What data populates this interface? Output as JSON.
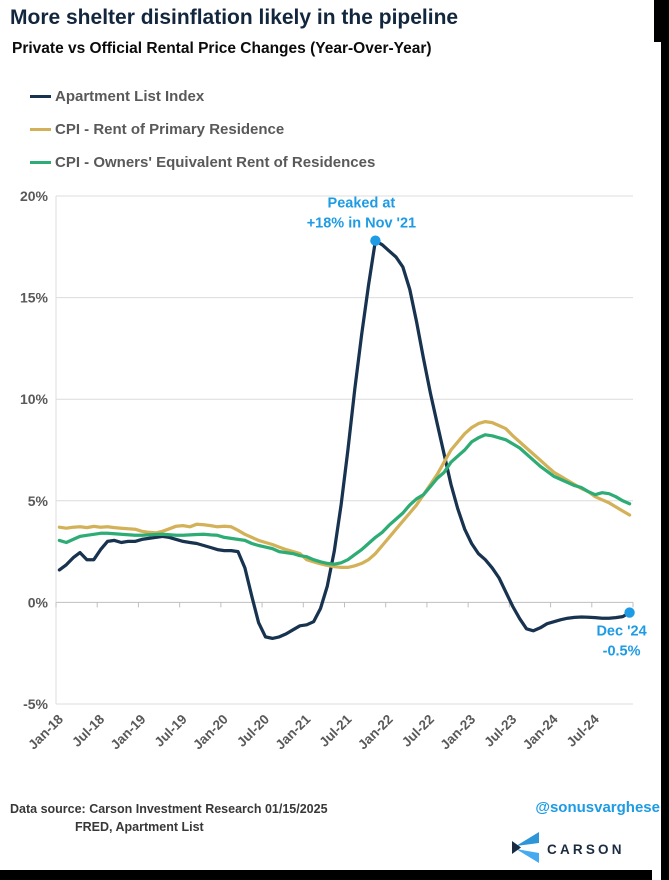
{
  "page": {
    "title": "More shelter disinflation likely in the pipeline",
    "subtitle": "Private vs Official Rental Price Changes (Year-Over-Year)"
  },
  "legend": {
    "items": [
      {
        "label": "Apartment List Index",
        "color": "#17334f"
      },
      {
        "label": "CPI - Rent of Primary Residence",
        "color": "#d3b158"
      },
      {
        "label": "CPI - Owners' Equivalent Rent of Residences",
        "color": "#2eac75"
      }
    ]
  },
  "chart_data": {
    "type": "line",
    "frequency": "monthly",
    "x_start": "Jan-2018",
    "x_end": "Dec-2024",
    "x_tick_labels": [
      "Jan-18",
      "Jul-18",
      "Jan-19",
      "Jul-19",
      "Jan-20",
      "Jul-20",
      "Jan-21",
      "Jul-21",
      "Jan-22",
      "Jul-22",
      "Jan-23",
      "Jul-23",
      "Jan-24",
      "Jul-24"
    ],
    "y_ticks": [
      20,
      15,
      10,
      5,
      0,
      -5
    ],
    "y_tick_labels": [
      "20%",
      "15%",
      "10%",
      "5%",
      "0%",
      "-5%"
    ],
    "ylim": [
      -5,
      20
    ],
    "grid": true,
    "legend_position": "top-left",
    "series": [
      {
        "name": "Apartment List Index",
        "color": "#17334f",
        "values": [
          1.6,
          1.85,
          2.2,
          2.45,
          2.1,
          2.1,
          2.6,
          3.0,
          3.05,
          2.95,
          3.0,
          3.0,
          3.1,
          3.15,
          3.2,
          3.25,
          3.2,
          3.1,
          3.0,
          2.95,
          2.9,
          2.8,
          2.7,
          2.6,
          2.55,
          2.55,
          2.5,
          1.7,
          0.3,
          -1.0,
          -1.7,
          -1.77,
          -1.7,
          -1.55,
          -1.35,
          -1.15,
          -1.1,
          -0.95,
          -0.3,
          0.8,
          2.5,
          4.8,
          7.5,
          10.5,
          13.2,
          15.6,
          17.8,
          17.6,
          17.3,
          17.0,
          16.5,
          15.4,
          13.8,
          12.0,
          10.3,
          8.8,
          7.3,
          5.8,
          4.6,
          3.6,
          2.9,
          2.4,
          2.1,
          1.7,
          1.2,
          0.5,
          -0.2,
          -0.8,
          -1.3,
          -1.4,
          -1.25,
          -1.05,
          -0.95,
          -0.85,
          -0.78,
          -0.74,
          -0.72,
          -0.73,
          -0.75,
          -0.78,
          -0.78,
          -0.75,
          -0.7,
          -0.5
        ]
      },
      {
        "name": "CPI - Rent of Primary Residence",
        "color": "#d3b158",
        "values": [
          3.7,
          3.65,
          3.7,
          3.72,
          3.68,
          3.74,
          3.7,
          3.72,
          3.68,
          3.65,
          3.62,
          3.6,
          3.5,
          3.45,
          3.42,
          3.5,
          3.62,
          3.75,
          3.78,
          3.72,
          3.85,
          3.82,
          3.78,
          3.72,
          3.75,
          3.72,
          3.55,
          3.35,
          3.2,
          3.05,
          2.95,
          2.85,
          2.72,
          2.6,
          2.5,
          2.4,
          2.1,
          2.0,
          1.9,
          1.82,
          1.76,
          1.72,
          1.72,
          1.8,
          1.92,
          2.1,
          2.4,
          2.8,
          3.2,
          3.6,
          4.0,
          4.4,
          4.8,
          5.3,
          5.8,
          6.3,
          6.9,
          7.5,
          7.9,
          8.3,
          8.6,
          8.8,
          8.9,
          8.85,
          8.7,
          8.55,
          8.2,
          7.9,
          7.6,
          7.3,
          7.0,
          6.7,
          6.4,
          6.2,
          6.0,
          5.8,
          5.6,
          5.45,
          5.2,
          5.05,
          4.9,
          4.7,
          4.5,
          4.3
        ]
      },
      {
        "name": "CPI - Owners' Equivalent Rent of Residences",
        "color": "#2eac75",
        "values": [
          3.05,
          2.95,
          3.1,
          3.25,
          3.3,
          3.35,
          3.4,
          3.4,
          3.38,
          3.35,
          3.33,
          3.3,
          3.3,
          3.32,
          3.34,
          3.35,
          3.33,
          3.3,
          3.3,
          3.32,
          3.34,
          3.35,
          3.32,
          3.3,
          3.2,
          3.15,
          3.1,
          3.05,
          2.9,
          2.8,
          2.72,
          2.65,
          2.5,
          2.45,
          2.4,
          2.3,
          2.25,
          2.1,
          2.0,
          1.92,
          1.88,
          1.95,
          2.1,
          2.35,
          2.6,
          2.9,
          3.2,
          3.45,
          3.8,
          4.1,
          4.4,
          4.8,
          5.1,
          5.3,
          5.7,
          6.1,
          6.4,
          6.9,
          7.2,
          7.5,
          7.9,
          8.1,
          8.25,
          8.2,
          8.1,
          8.0,
          7.8,
          7.6,
          7.3,
          7.0,
          6.7,
          6.45,
          6.2,
          6.05,
          5.9,
          5.75,
          5.65,
          5.45,
          5.3,
          5.4,
          5.35,
          5.2,
          5.0,
          4.85
        ]
      }
    ],
    "annotations": [
      {
        "attach": "peak",
        "lines": [
          "Peaked at",
          "+18% in Nov '21"
        ],
        "color": "#1d9be4"
      },
      {
        "attach": "last",
        "lines": [
          "Dec '24",
          "-0.5%"
        ],
        "color": "#1d9be4"
      }
    ],
    "markers": [
      {
        "series": 0,
        "point": "peak",
        "color": "#1d9be4"
      },
      {
        "series": 0,
        "point": "last",
        "color": "#1d9be4"
      }
    ]
  },
  "footer": {
    "source_line1": "Data source: Carson Investment Research   01/15/2025",
    "source_line2": "FRED, Apartment List",
    "handle": "@sonusvarghese",
    "logo_text": "CARSON"
  },
  "colors": {
    "title": "#12263d",
    "axis_text": "#595959",
    "gridline": "#dcdcdc",
    "zero_axis": "#bfbfbf",
    "annotation_blue": "#1d9be4"
  }
}
